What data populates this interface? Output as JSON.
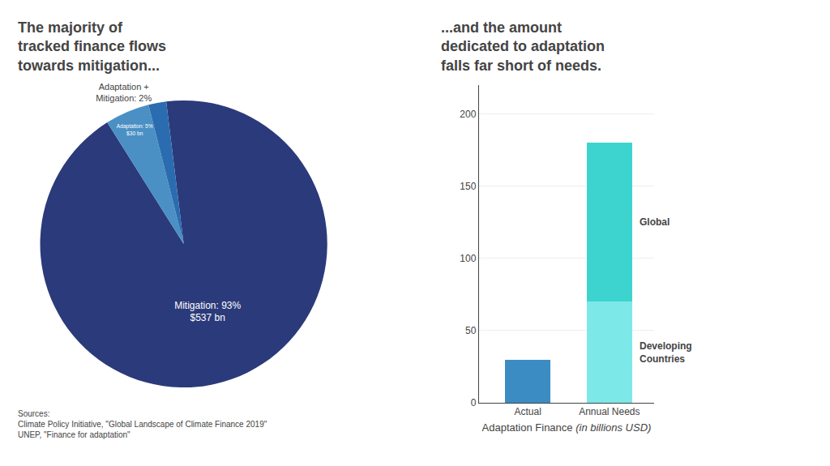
{
  "chart_data": [
    {
      "type": "pie",
      "title": "The majority of\ntracked finance flows\ntowards mitigation...",
      "values": [
        93,
        5,
        2
      ],
      "value_labels": [
        "Mitigation: 93%\n$537 bn",
        "Adaptation: 5%\n$30 bn",
        "Adaptation +\nMitigation: 2%"
      ],
      "colors": [
        "#2B3A7A",
        "#4A90C4",
        "#2B6CB0"
      ],
      "data_labels": true,
      "annotations": [
        "Sources:\nClimate Policy Initiative, \"Global Landscape of Climate Finance 2019\"\nUNEP, \"Finance for adaptation\""
      ]
    },
    {
      "type": "bar",
      "title": "...and the amount\ndedicated to adaptation\nfalls far short of needs.",
      "categories": [
        "Actual",
        "Annual Needs"
      ],
      "series": [
        {
          "values": [
            30,
            null
          ],
          "color": "#3C8CC4"
        },
        {
          "name": "Developing\nCountries",
          "values": [
            null,
            70
          ],
          "color": "#7DE8E8"
        },
        {
          "name": "Global",
          "values": [
            null,
            110
          ],
          "color": "#3DD4D0"
        }
      ],
      "stacked": true,
      "x_label": "Adaptation Finance (in billions USD)",
      "ylim": [
        0,
        220
      ],
      "yticks": [
        0,
        50,
        100,
        150,
        200
      ],
      "grid": true
    }
  ]
}
